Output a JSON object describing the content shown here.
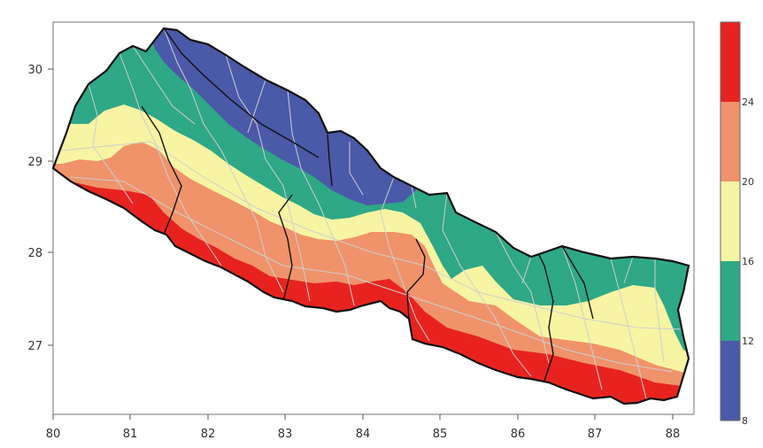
{
  "map": {
    "x_ticks": [
      "80",
      "81",
      "82",
      "83",
      "84",
      "85",
      "86",
      "87",
      "88"
    ],
    "y_ticks": [
      "30",
      "29",
      "28",
      "27"
    ]
  },
  "colorbar": {
    "labels": [
      "8",
      "12",
      "16",
      "20",
      "24"
    ],
    "bands": [
      {
        "from": 8,
        "to": 12,
        "color": "#4a59a8"
      },
      {
        "from": 12,
        "to": 16,
        "color": "#2ea887"
      },
      {
        "from": 16,
        "to": 20,
        "color": "#f7f4a3"
      },
      {
        "from": 20,
        "to": 24,
        "color": "#f0936a"
      },
      {
        "from": 24,
        "to": 28,
        "color": "#e8231f"
      }
    ]
  },
  "colors": {
    "band_8_12": "#4a59a8",
    "band_12_16": "#2ea887",
    "band_16_20": "#f7f4a3",
    "band_20_24": "#f0936a",
    "band_24_28": "#e8231f",
    "border": "#111111",
    "district_lines": "#cfcfcf"
  }
}
